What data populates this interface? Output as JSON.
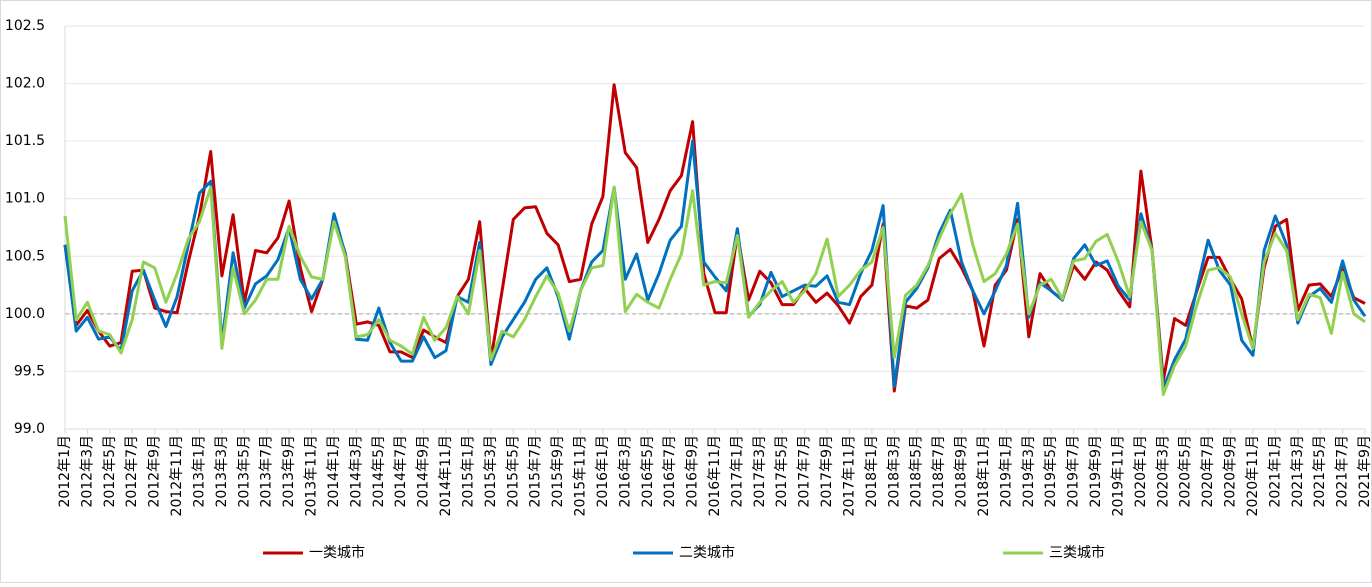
{
  "chart_data": {
    "type": "line",
    "categories": [
      "2012年1月",
      null,
      "2012年3月",
      null,
      "2012年5月",
      null,
      "2012年7月",
      null,
      "2012年9月",
      null,
      "2012年11月",
      null,
      "2013年1月",
      null,
      "2013年3月",
      null,
      "2013年5月",
      null,
      "2013年7月",
      null,
      "2013年9月",
      null,
      "2013年11月",
      null,
      "2014年1月",
      null,
      "2014年3月",
      null,
      "2014年5月",
      null,
      "2014年7月",
      null,
      "2014年9月",
      null,
      "2014年11月",
      null,
      "2015年1月",
      null,
      "2015年3月",
      null,
      "2015年5月",
      null,
      "2015年7月",
      null,
      "2015年9月",
      null,
      "2015年11月",
      null,
      "2016年1月",
      null,
      "2016年3月",
      null,
      "2016年5月",
      null,
      "2016年7月",
      null,
      "2016年9月",
      null,
      "2016年11月",
      null,
      "2017年1月",
      null,
      "2017年3月",
      null,
      "2017年5月",
      null,
      "2017年7月",
      null,
      "2017年9月",
      null,
      "2017年11月",
      null,
      "2018年1月",
      null,
      "2018年3月",
      null,
      "2018年5月",
      null,
      "2018年7月",
      null,
      "2018年9月",
      null,
      "2018年11月",
      null,
      "2019年1月",
      null,
      "2019年3月",
      null,
      "2019年5月",
      null,
      "2019年7月",
      null,
      "2019年9月",
      null,
      "2019年11月",
      null,
      "2020年1月",
      null,
      "2020年3月",
      null,
      "2020年5月",
      null,
      "2020年7月",
      null,
      "2020年9月",
      null,
      "2020年11月",
      null,
      "2021年1月",
      null,
      "2021年3月",
      null,
      "2021年5月",
      null,
      "2021年7月",
      null,
      "2021年9月"
    ],
    "series": [
      {
        "name": "一类城市",
        "color": "#c00000",
        "values": [
          100.6,
          99.9,
          100.03,
          99.85,
          99.72,
          99.75,
          100.37,
          100.38,
          100.05,
          100.02,
          100.01,
          100.45,
          100.85,
          101.41,
          100.33,
          100.86,
          100.1,
          100.55,
          100.53,
          100.66,
          100.98,
          100.4,
          100.02,
          100.3,
          100.82,
          100.53,
          99.91,
          99.93,
          99.9,
          99.67,
          99.67,
          99.62,
          99.86,
          99.8,
          99.75,
          100.15,
          100.3,
          100.8,
          99.6,
          100.2,
          100.82,
          100.92,
          100.93,
          100.7,
          100.6,
          100.28,
          100.3,
          100.78,
          101.02,
          101.99,
          101.4,
          101.27,
          100.62,
          100.82,
          101.07,
          101.2,
          101.67,
          100.35,
          100.01,
          100.01,
          100.7,
          100.12,
          100.37,
          100.27,
          100.08,
          100.08,
          100.22,
          100.1,
          100.18,
          100.07,
          99.92,
          100.15,
          100.25,
          100.78,
          99.33,
          100.07,
          100.05,
          100.12,
          100.48,
          100.56,
          100.4,
          100.2,
          99.72,
          100.25,
          100.38,
          100.82,
          99.8,
          100.35,
          100.2,
          100.12,
          100.42,
          100.3,
          100.45,
          100.38,
          100.2,
          100.06,
          101.24,
          100.55,
          99.42,
          99.96,
          99.9,
          100.2,
          100.49,
          100.49,
          100.3,
          100.13,
          99.7,
          100.4,
          100.76,
          100.82,
          100.03,
          100.25,
          100.26,
          100.15,
          100.4,
          100.14,
          100.09
        ]
      },
      {
        "name": "二类城市",
        "color": "#0070c0",
        "values": [
          100.6,
          99.85,
          99.97,
          99.78,
          99.8,
          99.68,
          100.2,
          100.38,
          100.12,
          99.89,
          100.15,
          100.6,
          101.05,
          101.15,
          99.75,
          100.53,
          100.05,
          100.26,
          100.33,
          100.47,
          100.75,
          100.3,
          100.13,
          100.3,
          100.87,
          100.52,
          99.78,
          99.77,
          100.05,
          99.75,
          99.59,
          99.59,
          99.8,
          99.62,
          99.68,
          100.15,
          100.1,
          100.62,
          99.56,
          99.8,
          99.95,
          100.1,
          100.3,
          100.4,
          100.15,
          99.78,
          100.2,
          100.45,
          100.55,
          101.1,
          100.3,
          100.52,
          100.12,
          100.35,
          100.64,
          100.76,
          101.5,
          100.45,
          100.32,
          100.2,
          100.74,
          99.98,
          100.08,
          100.36,
          100.15,
          100.2,
          100.25,
          100.24,
          100.33,
          100.1,
          100.08,
          100.35,
          100.55,
          100.94,
          99.37,
          100.1,
          100.22,
          100.4,
          100.7,
          100.9,
          100.45,
          100.2,
          100.0,
          100.2,
          100.42,
          100.96,
          99.97,
          100.27,
          100.2,
          100.12,
          100.48,
          100.6,
          100.42,
          100.46,
          100.24,
          100.12,
          100.87,
          100.55,
          99.35,
          99.6,
          99.78,
          100.22,
          100.64,
          100.38,
          100.25,
          99.77,
          99.64,
          100.55,
          100.85,
          100.6,
          99.92,
          100.15,
          100.22,
          100.1,
          100.46,
          100.12,
          99.98
        ]
      },
      {
        "name": "三类城市",
        "color": "#92d050",
        "values": [
          100.85,
          99.95,
          100.1,
          99.85,
          99.82,
          99.66,
          99.95,
          100.45,
          100.4,
          100.1,
          100.35,
          100.65,
          100.8,
          101.1,
          99.7,
          100.4,
          100.0,
          100.12,
          100.3,
          100.3,
          100.76,
          100.5,
          100.32,
          100.3,
          100.8,
          100.5,
          99.8,
          99.82,
          99.95,
          99.77,
          99.72,
          99.65,
          99.97,
          99.77,
          99.88,
          100.15,
          100.0,
          100.55,
          99.6,
          99.85,
          99.8,
          99.95,
          100.15,
          100.33,
          100.18,
          99.85,
          100.2,
          100.4,
          100.42,
          101.1,
          100.02,
          100.17,
          100.1,
          100.05,
          100.3,
          100.52,
          101.07,
          100.25,
          100.28,
          100.27,
          100.68,
          99.97,
          100.1,
          100.2,
          100.28,
          100.1,
          100.2,
          100.35,
          100.65,
          100.15,
          100.25,
          100.38,
          100.45,
          100.75,
          99.62,
          100.16,
          100.25,
          100.42,
          100.65,
          100.87,
          101.04,
          100.6,
          100.28,
          100.35,
          100.52,
          100.78,
          100.0,
          100.25,
          100.3,
          100.13,
          100.46,
          100.48,
          100.63,
          100.69,
          100.45,
          100.15,
          100.8,
          100.55,
          99.3,
          99.55,
          99.72,
          100.08,
          100.38,
          100.4,
          100.32,
          100.0,
          99.7,
          100.45,
          100.7,
          100.55,
          99.95,
          100.17,
          100.14,
          99.83,
          100.36,
          100.0,
          99.93
        ]
      }
    ],
    "ylim": [
      99.0,
      102.5
    ],
    "yticks": [
      {
        "value": 99.0,
        "label": "99.0"
      },
      99.5,
      {
        "value": 100.0,
        "label": "100.0"
      },
      100.5,
      {
        "value": 101.0,
        "label": "101.0"
      },
      101.5,
      {
        "value": 102.0,
        "label": "102.0"
      },
      102.5
    ],
    "reference_line": 100,
    "grid": true,
    "legend": "bottom"
  }
}
